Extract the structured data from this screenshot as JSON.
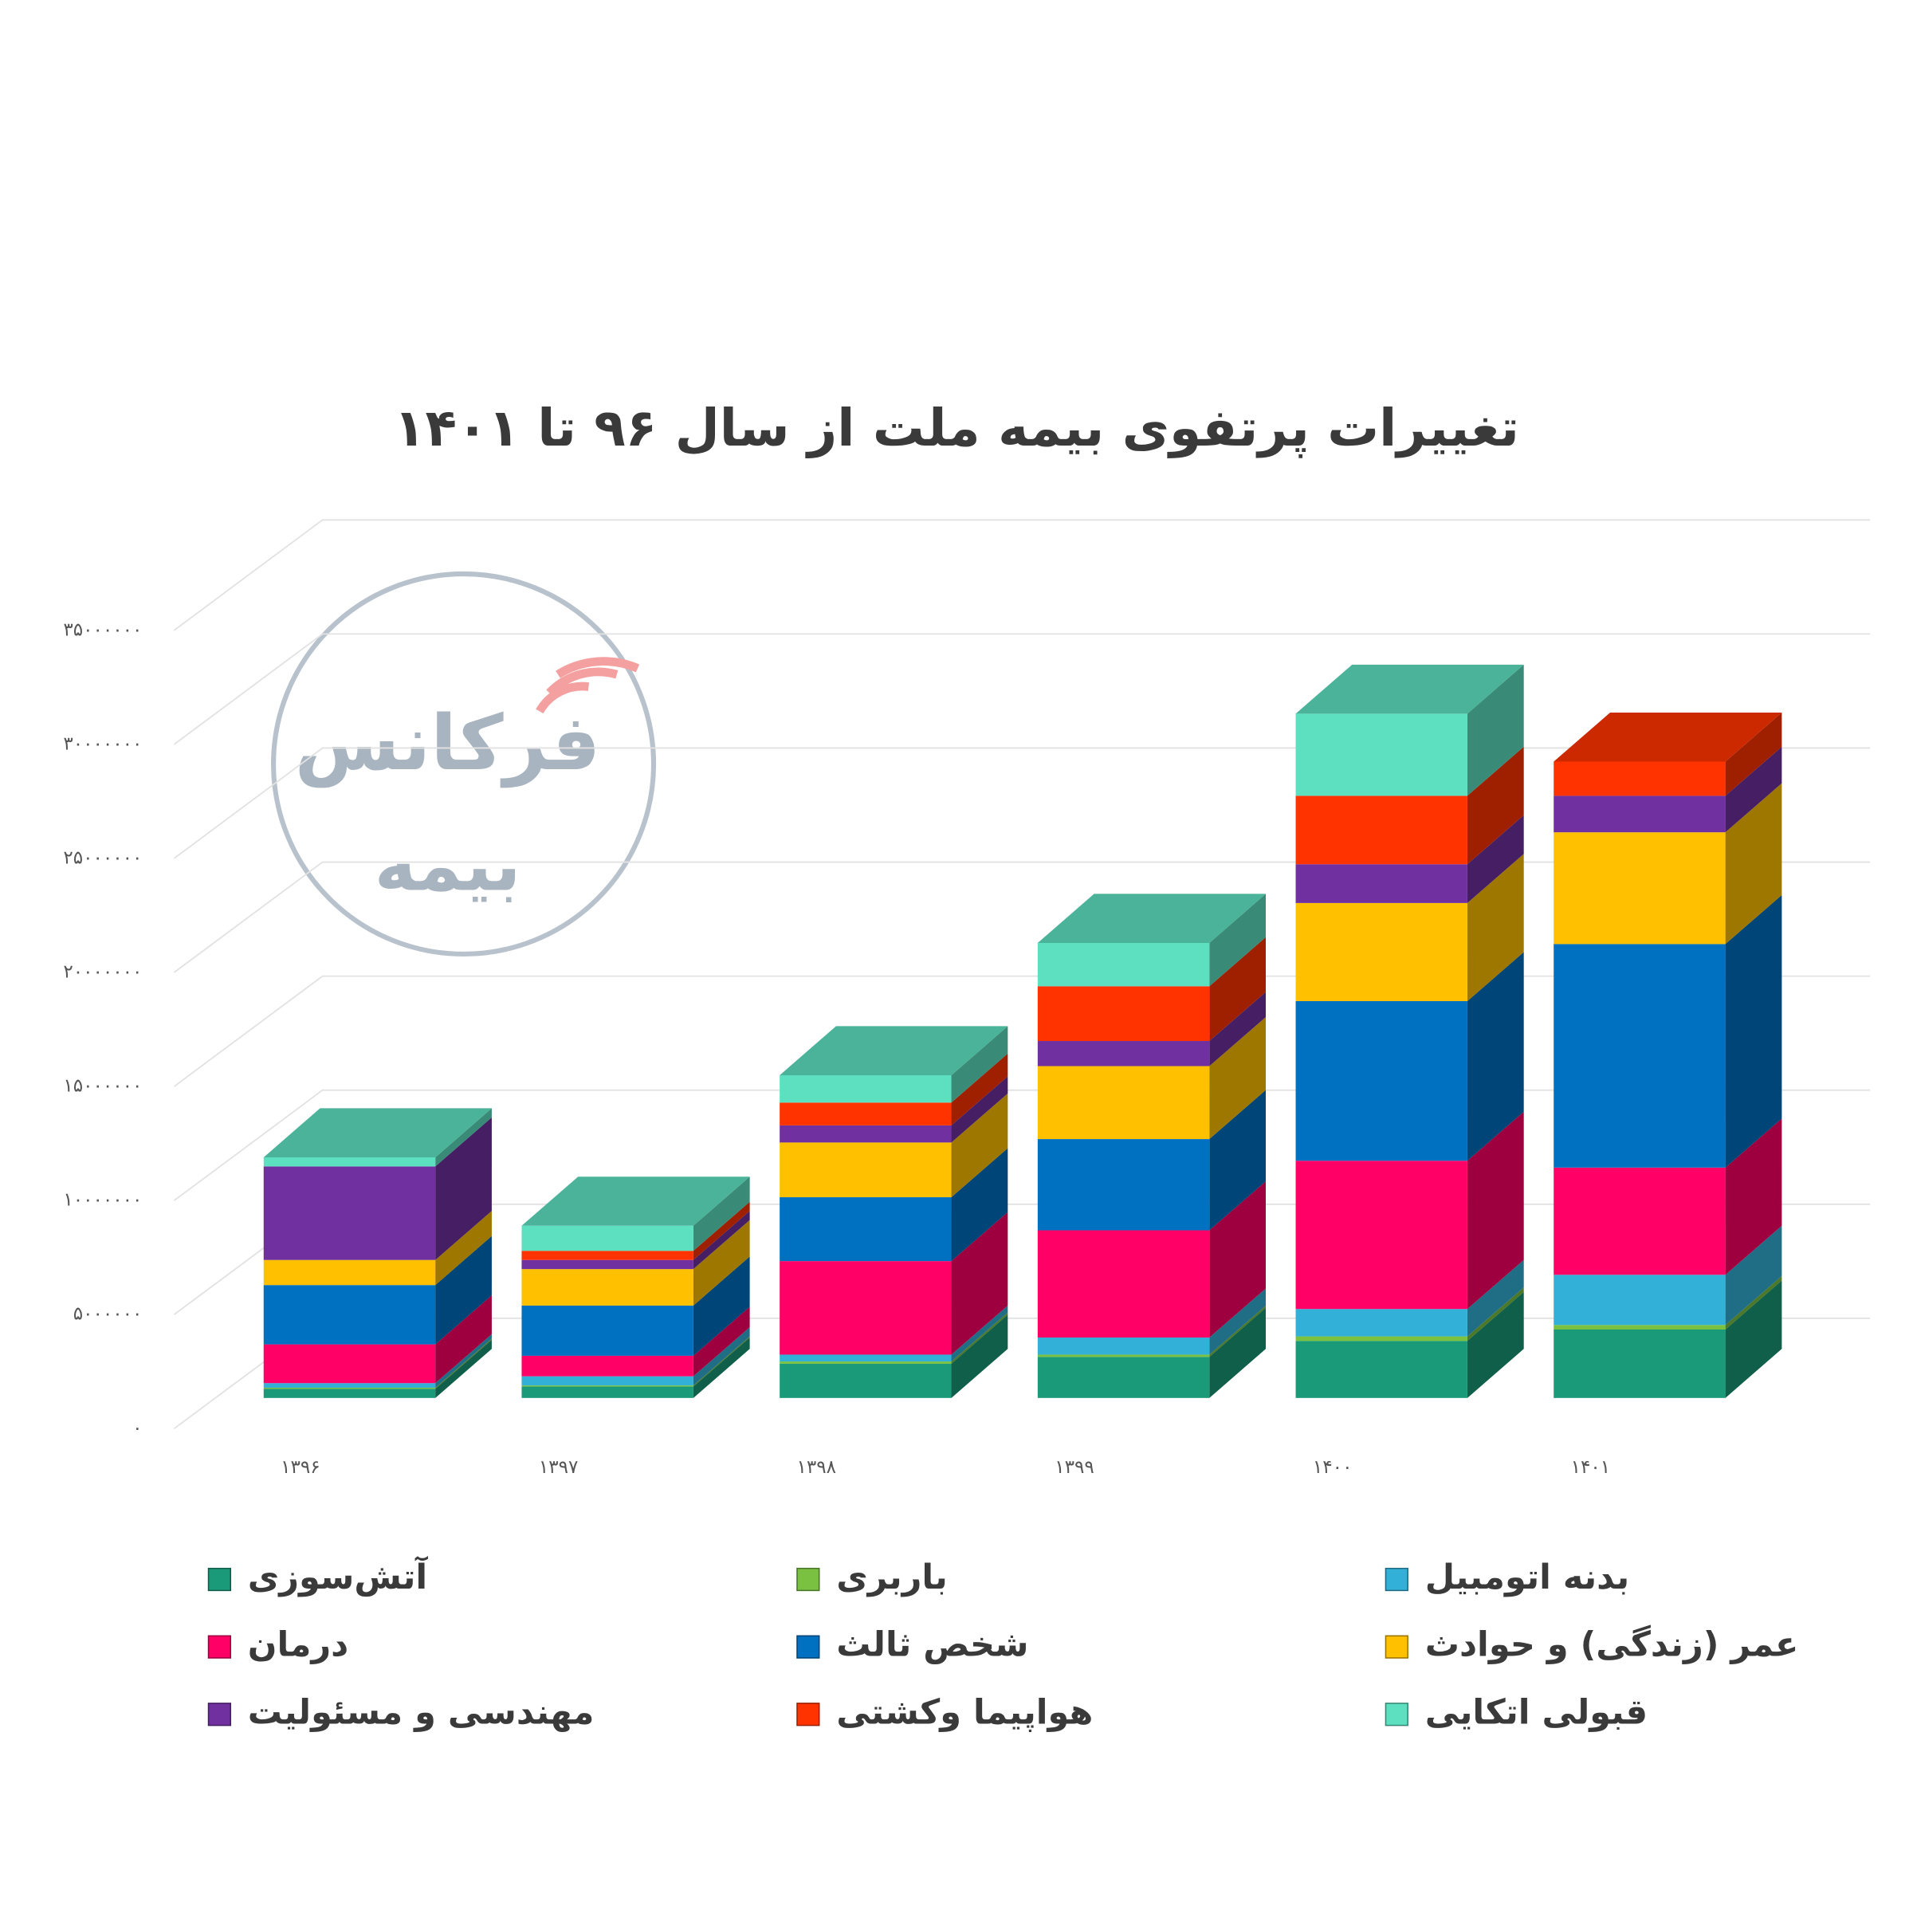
{
  "chart_data": {
    "type": "bar3d_stacked",
    "title": "تغییرات پرتفوی بیمه ملت از سال ۹۶ تا ۱۴۰۱",
    "watermark": {
      "line1": "فرکانس",
      "line2": "بیمه"
    },
    "categories": [
      "۱۳۹۶",
      "۱۳۹۷",
      "۱۳۹۸",
      "۱۳۹۹",
      "۱۴۰۰",
      "۱۴۰۱"
    ],
    "ylim": [
      0,
      35000000
    ],
    "yticks": [
      {
        "value": 0,
        "label": "۰"
      },
      {
        "value": 5000000,
        "label": "۵۰۰۰۰۰۰"
      },
      {
        "value": 10000000,
        "label": "۱۰۰۰۰۰۰۰"
      },
      {
        "value": 15000000,
        "label": "۱۵۰۰۰۰۰۰"
      },
      {
        "value": 20000000,
        "label": "۲۰۰۰۰۰۰۰"
      },
      {
        "value": 25000000,
        "label": "۲۵۰۰۰۰۰۰"
      },
      {
        "value": 30000000,
        "label": "۳۰۰۰۰۰۰۰"
      },
      {
        "value": 35000000,
        "label": "۳۵۰۰۰۰۰۰"
      }
    ],
    "grid": true,
    "series": [
      {
        "name": "آتش‌سوزی",
        "color": "#1a9a78",
        "values": [
          400000,
          500000,
          1500000,
          1800000,
          2500000,
          3000000
        ]
      },
      {
        "name": "باربری",
        "color": "#7ac142",
        "values": [
          50000,
          50000,
          100000,
          100000,
          200000,
          200000
        ]
      },
      {
        "name": "بدنه اتومبیل",
        "color": "#33b0d8",
        "values": [
          200000,
          400000,
          300000,
          750000,
          1200000,
          2200000
        ]
      },
      {
        "name": "درمان",
        "color": "#ff0066",
        "values": [
          1700000,
          900000,
          4100000,
          4700000,
          6500000,
          4700000
        ]
      },
      {
        "name": "شخص ثالث",
        "color": "#0070c0",
        "values": [
          2600000,
          2200000,
          2800000,
          4000000,
          7000000,
          9800000
        ]
      },
      {
        "name": "عمر (زندگی) و حوادث",
        "color": "#ffc000",
        "values": [
          1100000,
          1600000,
          2400000,
          3200000,
          4300000,
          4900000
        ]
      },
      {
        "name": "مهندسی و مسئولیت",
        "color": "#7030a0",
        "values": [
          4100000,
          400000,
          750000,
          1100000,
          1700000,
          1600000
        ]
      },
      {
        "name": "هواپیما وکشتی",
        "color": "#ff3300",
        "values": [
          0,
          400000,
          1000000,
          2400000,
          3000000,
          1500000
        ]
      },
      {
        "name": "قبولی اتکایی",
        "color": "#5ce0c0",
        "values": [
          400000,
          1100000,
          1200000,
          1900000,
          3600000,
          0
        ]
      }
    ]
  }
}
